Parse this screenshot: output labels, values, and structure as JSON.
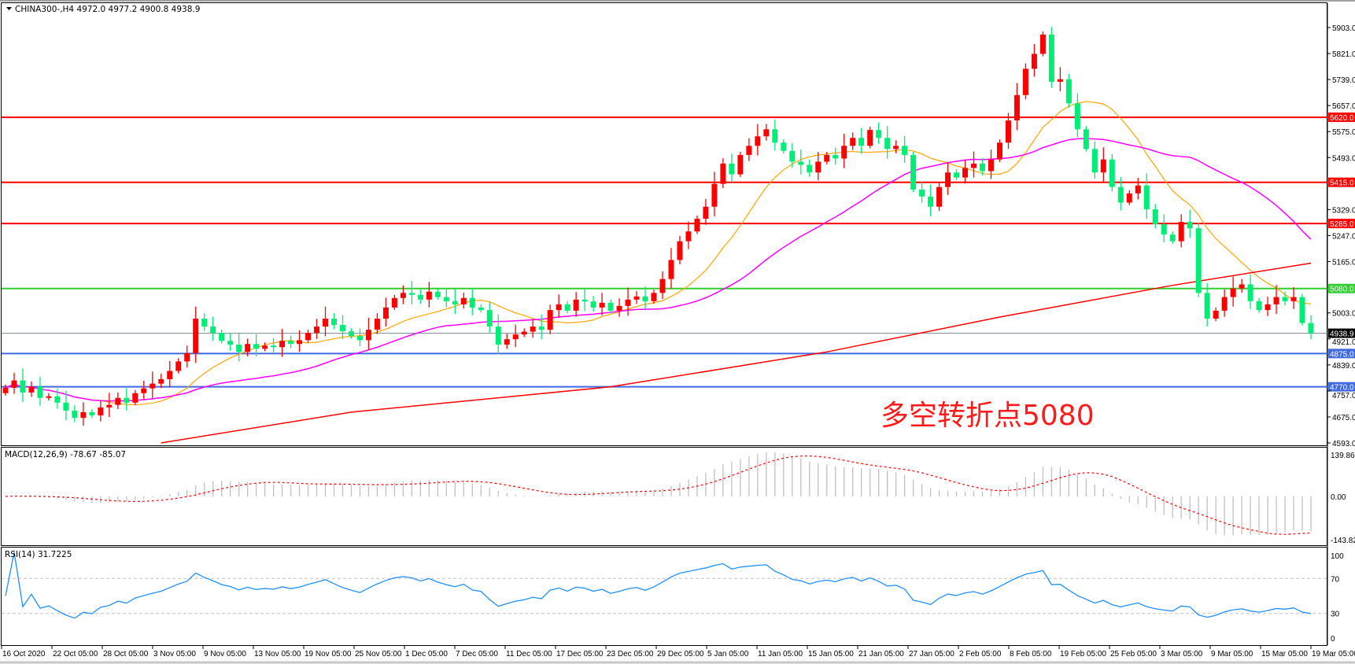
{
  "header": {
    "symbol_line": "CHINA300-,H4  4972.0 4977.2 4900.8 4938.9",
    "menu_icon": "triangle-down-icon"
  },
  "macd_label": "MACD(12,26,9) -78.67 -85.07",
  "rsi_label": "RSI(14) 31.7225",
  "annotation": "多空转折点5080",
  "colors": {
    "up_candle": "#ff0000",
    "down_candle": "#00ee76",
    "ma_fast": "#ffa500",
    "ma_mid": "#ff00ff",
    "ma_slow": "#ff0000",
    "resistance": "#ff0000",
    "pivot": "#32cd32",
    "support": "#4169e1",
    "rsi": "#1e90ff",
    "macd_hist": "#c0c0c0",
    "macd_signal": "#ff0000"
  },
  "chart_data": {
    "type": "candlestick",
    "symbol": "CHINA300-",
    "timeframe": "H4",
    "ylim": [
      4593,
      5903
    ],
    "y_ticks": [
      "5903.0",
      "5821.0",
      "5739.0",
      "5657.0",
      "5575.0",
      "5493.0",
      "5329.0",
      "5247.0",
      "5165.0",
      "5003.0",
      "4921.0",
      "4839.0",
      "4757.0",
      "4675.0",
      "4593.0"
    ],
    "x_ticks": [
      "16 Oct 2020",
      "22 Oct 05:00",
      "28 Oct 05:00",
      "3 Nov 05:00",
      "9 Nov 05:00",
      "13 Nov 05:00",
      "19 Nov 05:00",
      "25 Nov 05:00",
      "1 Dec 05:00",
      "7 Dec 05:00",
      "11 Dec 05:00",
      "17 Dec 05:00",
      "23 Dec 05:00",
      "29 Dec 05:00",
      "5 Jan 05:00",
      "11 Jan 05:00",
      "15 Jan 05:00",
      "21 Jan 05:00",
      "27 Jan 05:00",
      "2 Feb 05:00",
      "8 Feb 05:00",
      "19 Feb 05:00",
      "25 Feb 05:00",
      "3 Mar 05:00",
      "9 Mar 05:00",
      "15 Mar 05:00",
      "19 Mar 05:00"
    ],
    "close": [
      4767,
      4790,
      4752,
      4770,
      4735,
      4740,
      4720,
      4695,
      4672,
      4690,
      4680,
      4705,
      4713,
      4735,
      4720,
      4750,
      4765,
      4780,
      4794,
      4820,
      4850,
      4876,
      4985,
      4960,
      4940,
      4915,
      4903,
      4880,
      4905,
      4890,
      4900,
      4895,
      4915,
      4905,
      4917,
      4940,
      4960,
      4985,
      4965,
      4945,
      4930,
      4917,
      4950,
      4985,
      5020,
      5050,
      5066,
      5060,
      5045,
      5070,
      5053,
      5040,
      5030,
      5050,
      5020,
      5012,
      4960,
      4903,
      4920,
      4935,
      4944,
      4960,
      4950,
      5012,
      5030,
      5010,
      5045,
      5039,
      5020,
      5035,
      5010,
      5025,
      5045,
      5055,
      5040,
      5066,
      5110,
      5170,
      5229,
      5260,
      5300,
      5338,
      5410,
      5474,
      5440,
      5501,
      5530,
      5560,
      5582,
      5540,
      5514,
      5480,
      5470,
      5446,
      5480,
      5501,
      5490,
      5530,
      5555,
      5530,
      5580,
      5555,
      5520,
      5530,
      5501,
      5392,
      5370,
      5338,
      5400,
      5446,
      5430,
      5460,
      5474,
      5450,
      5487,
      5540,
      5610,
      5690,
      5773,
      5820,
      5881,
      5732,
      5740,
      5664,
      5582,
      5520,
      5446,
      5487,
      5400,
      5351,
      5380,
      5405,
      5330,
      5283,
      5250,
      5229,
      5290,
      5270,
      5066,
      4985,
      5010,
      5053,
      5080,
      5093,
      5040,
      5012,
      5030,
      5053,
      5040,
      5053,
      4971,
      4939
    ],
    "last_price": "4938.9",
    "ma_slow_points": [
      [
        18,
        4593
      ],
      [
        40,
        4690
      ],
      [
        70,
        4770
      ],
      [
        95,
        4880
      ],
      [
        115,
        4990
      ],
      [
        135,
        5090
      ],
      [
        151,
        5160
      ]
    ],
    "levels": [
      {
        "value": 5620,
        "label": "5620.0",
        "kind": "resistance"
      },
      {
        "value": 5415,
        "label": "5415.0",
        "kind": "resistance"
      },
      {
        "value": 5285,
        "label": "5285.0",
        "kind": "resistance"
      },
      {
        "value": 5080,
        "label": "5080.0",
        "kind": "pivot"
      },
      {
        "value": 4875,
        "label": "4875.0",
        "kind": "support"
      },
      {
        "value": 4770,
        "label": "4770.0",
        "kind": "support"
      }
    ],
    "macd": {
      "ylim": [
        -143.82,
        139.86
      ],
      "ticks": [
        "139.86",
        "0.00",
        "-143.82"
      ]
    },
    "rsi": {
      "ylim": [
        0,
        100
      ],
      "ticks": [
        "100",
        "70",
        "30",
        "0"
      ],
      "levels": [
        70,
        30
      ]
    }
  }
}
